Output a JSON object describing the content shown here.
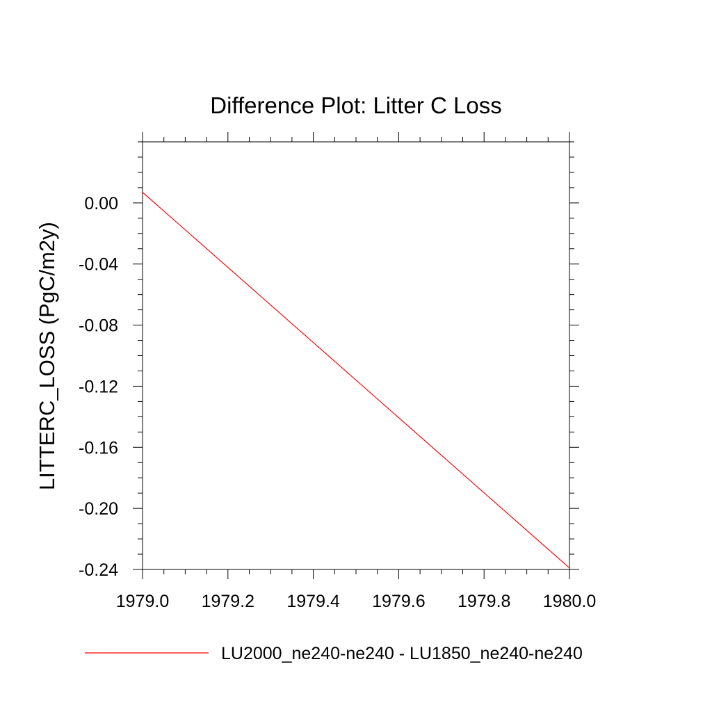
{
  "chart_data": {
    "type": "line",
    "title": "Difference Plot: Litter C Loss",
    "xlabel": "",
    "ylabel": "LITTERC_LOSS  (PgC/m2y)",
    "xlim": [
      1979.0,
      1980.0
    ],
    "ylim": [
      -0.24,
      0.04
    ],
    "x_ticks": [
      1979.0,
      1979.2,
      1979.4,
      1979.6,
      1979.8,
      1980.0
    ],
    "x_tick_labels": [
      "1979.0",
      "1979.2",
      "1979.4",
      "1979.6",
      "1979.8",
      "1980.0"
    ],
    "y_ticks": [
      0.0,
      -0.04,
      -0.08,
      -0.12,
      -0.16,
      -0.2,
      -0.24
    ],
    "y_tick_labels": [
      "0.00",
      "-0.04",
      "-0.08",
      "-0.12",
      "-0.16",
      "-0.20",
      "-0.24"
    ],
    "grid": false,
    "legend_position": "bottom",
    "series": [
      {
        "name": "LU2000_ne240-ne240 - LU1850_ne240-ne240",
        "color": "#ff0000",
        "x": [
          1979.0,
          1980.0
        ],
        "y": [
          0.007,
          -0.239
        ]
      }
    ]
  }
}
